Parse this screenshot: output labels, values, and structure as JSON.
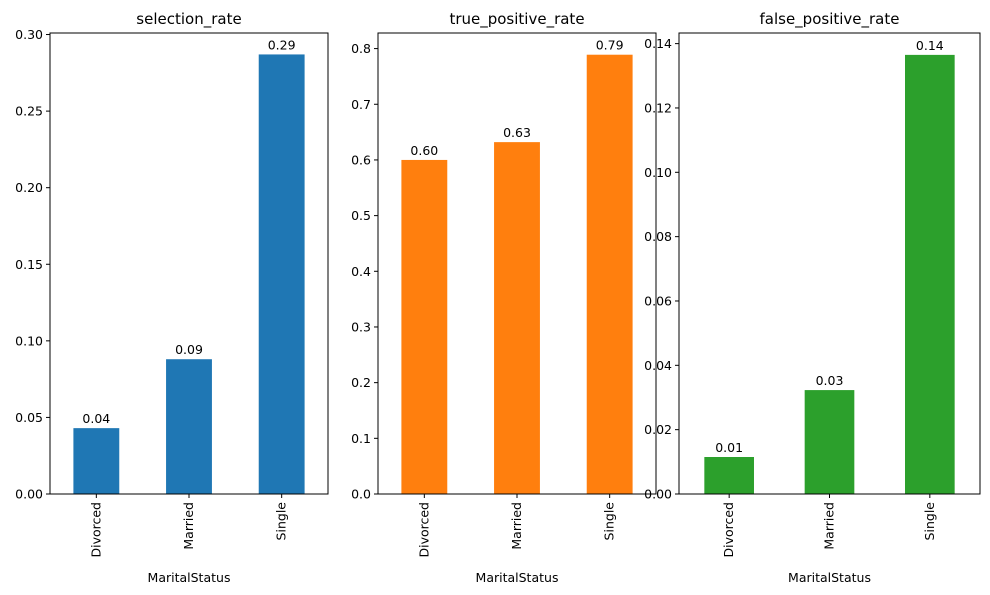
{
  "chart_data": [
    {
      "type": "bar",
      "title": "selection_rate",
      "xlabel": "MaritalStatus",
      "ylabel": "",
      "categories": [
        "Divorced",
        "Married",
        "Single"
      ],
      "values": [
        0.043,
        0.088,
        0.287
      ],
      "data_labels": [
        "0.04",
        "0.09",
        "0.29"
      ],
      "ylim": [
        0,
        0.301
      ],
      "yticks": [
        0.0,
        0.05,
        0.1,
        0.15,
        0.2,
        0.25,
        0.3
      ],
      "ytick_labels": [
        "0.00",
        "0.05",
        "0.10",
        "0.15",
        "0.20",
        "0.25",
        "0.30"
      ],
      "color": "#1f77b4",
      "grid": false,
      "legend": "none"
    },
    {
      "type": "bar",
      "title": "true_positive_rate",
      "xlabel": "MaritalStatus",
      "ylabel": "",
      "categories": [
        "Divorced",
        "Married",
        "Single"
      ],
      "values": [
        0.6,
        0.632,
        0.789
      ],
      "data_labels": [
        "0.60",
        "0.63",
        "0.79"
      ],
      "ylim": [
        0,
        0.828
      ],
      "yticks": [
        0.0,
        0.1,
        0.2,
        0.3,
        0.4,
        0.5,
        0.6,
        0.7,
        0.8
      ],
      "ytick_labels": [
        "0.0",
        "0.1",
        "0.2",
        "0.3",
        "0.4",
        "0.5",
        "0.6",
        "0.7",
        "0.8"
      ],
      "color": "#ff7f0e",
      "grid": false,
      "legend": "none"
    },
    {
      "type": "bar",
      "title": "false_positive_rate",
      "xlabel": "MaritalStatus",
      "ylabel": "",
      "categories": [
        "Divorced",
        "Married",
        "Single"
      ],
      "values": [
        0.0115,
        0.0323,
        0.1365
      ],
      "data_labels": [
        "0.01",
        "0.03",
        "0.14"
      ],
      "ylim": [
        0,
        0.1433
      ],
      "yticks": [
        0.0,
        0.02,
        0.04,
        0.06,
        0.08,
        0.1,
        0.12,
        0.14
      ],
      "ytick_labels": [
        "0.00",
        "0.02",
        "0.04",
        "0.06",
        "0.08",
        "0.10",
        "0.12",
        "0.14"
      ],
      "color": "#2ca02c",
      "grid": false,
      "legend": "none"
    }
  ]
}
